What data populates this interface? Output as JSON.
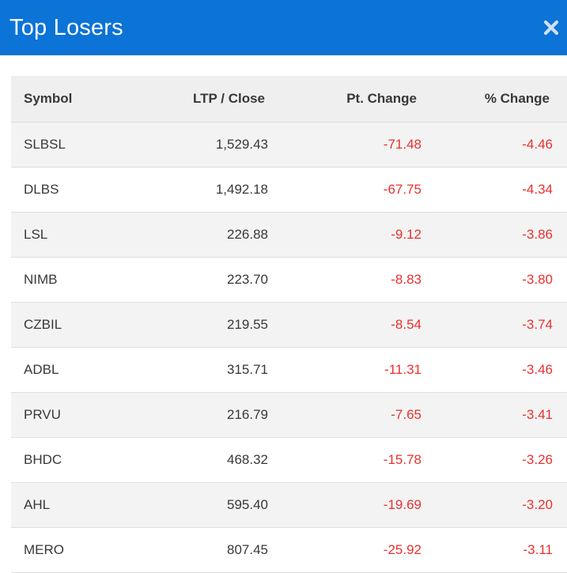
{
  "header": {
    "title": "Top Losers",
    "close_icon": "close-icon"
  },
  "table": {
    "columns": [
      "Symbol",
      "LTP / Close",
      "Pt. Change",
      "% Change"
    ],
    "rows": [
      {
        "symbol": "SLBSL",
        "ltp": "1,529.43",
        "pt_change": "-71.48",
        "pct_change": "-4.46"
      },
      {
        "symbol": "DLBS",
        "ltp": "1,492.18",
        "pt_change": "-67.75",
        "pct_change": "-4.34"
      },
      {
        "symbol": "LSL",
        "ltp": "226.88",
        "pt_change": "-9.12",
        "pct_change": "-3.86"
      },
      {
        "symbol": "NIMB",
        "ltp": "223.70",
        "pt_change": "-8.83",
        "pct_change": "-3.80"
      },
      {
        "symbol": "CZBIL",
        "ltp": "219.55",
        "pt_change": "-8.54",
        "pct_change": "-3.74"
      },
      {
        "symbol": "ADBL",
        "ltp": "315.71",
        "pt_change": "-11.31",
        "pct_change": "-3.46"
      },
      {
        "symbol": "PRVU",
        "ltp": "216.79",
        "pt_change": "-7.65",
        "pct_change": "-3.41"
      },
      {
        "symbol": "BHDC",
        "ltp": "468.32",
        "pt_change": "-15.78",
        "pct_change": "-3.26"
      },
      {
        "symbol": "AHL",
        "ltp": "595.40",
        "pt_change": "-19.69",
        "pct_change": "-3.20"
      },
      {
        "symbol": "MERO",
        "ltp": "807.45",
        "pt_change": "-25.92",
        "pct_change": "-3.11"
      }
    ]
  },
  "colors": {
    "header_bg": "#0c73d7",
    "negative": "#e8312f"
  }
}
